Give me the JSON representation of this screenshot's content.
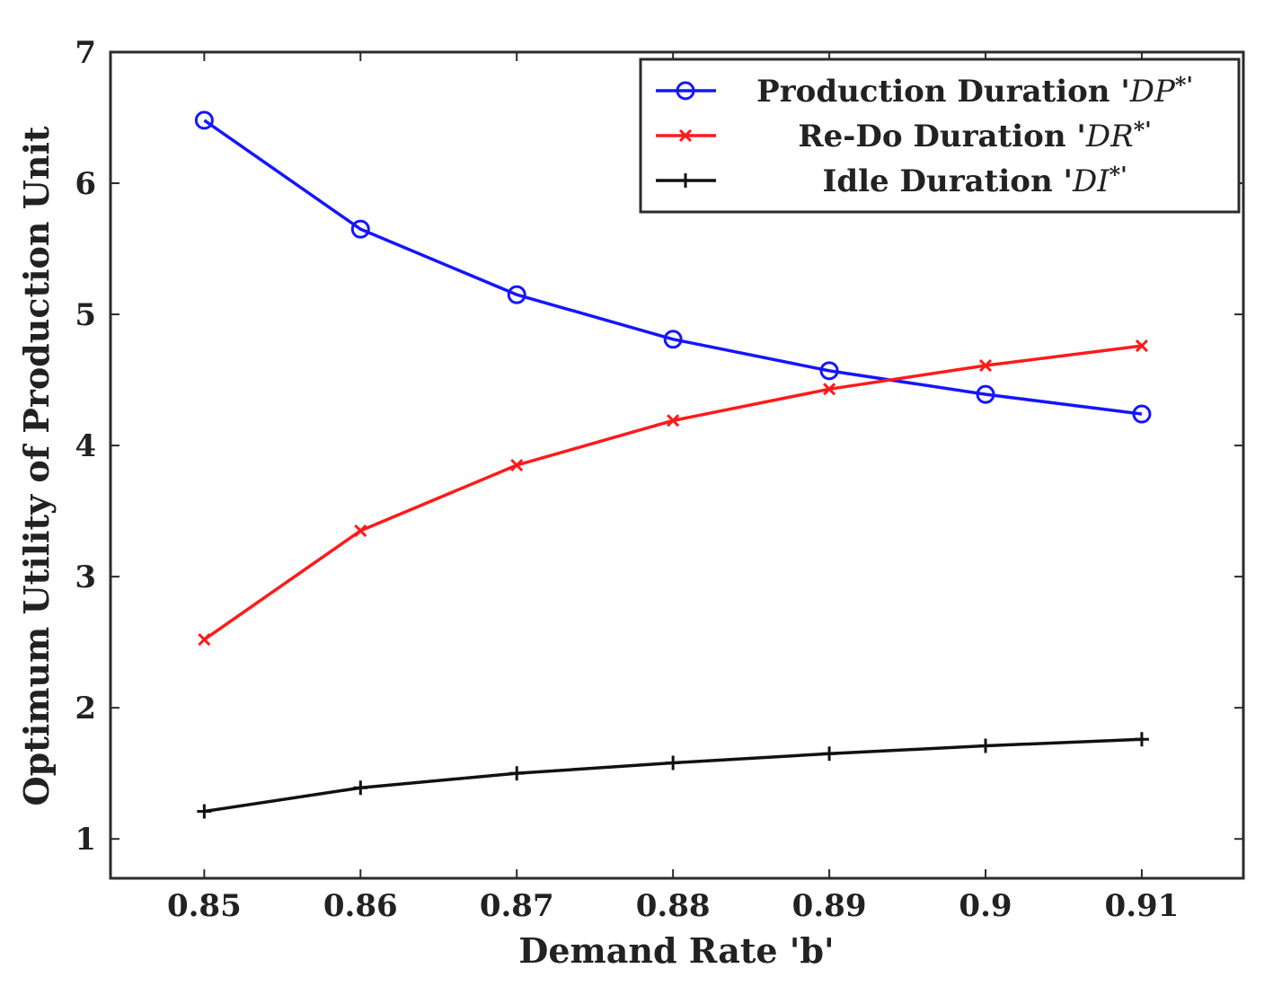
{
  "chart_data": {
    "type": "line",
    "title": "",
    "xlabel": "Demand Rate 'b'",
    "ylabel": "Optimum Utility of Production Unit",
    "x": [
      0.85,
      0.86,
      0.87,
      0.88,
      0.89,
      0.9,
      0.91
    ],
    "xticks": [
      "0.85",
      "0.86",
      "0.87",
      "0.88",
      "0.89",
      "0.9",
      "0.91"
    ],
    "yticks": [
      "1",
      "2",
      "3",
      "4",
      "5",
      "6",
      "7"
    ],
    "xlim": [
      0.844,
      0.9165
    ],
    "ylim": [
      0.7,
      7
    ],
    "grid": false,
    "legend_position": "top-right",
    "series": [
      {
        "name": "Production Duration 'DP*'",
        "legend_prefix": "Production Duration '",
        "legend_symbol": "DP",
        "legend_suffix": "*'",
        "color": "#1515ff",
        "marker": "circle",
        "values": [
          6.48,
          5.65,
          5.15,
          4.81,
          4.57,
          4.39,
          4.24
        ]
      },
      {
        "name": "Re-Do Duration 'DR*'",
        "legend_prefix": "Re-Do Duration '",
        "legend_symbol": "DR",
        "legend_suffix": "*'",
        "color": "#ff1a1a",
        "marker": "x",
        "values": [
          2.52,
          3.35,
          3.85,
          4.19,
          4.43,
          4.61,
          4.76
        ]
      },
      {
        "name": "Idle Duration 'DI*'",
        "legend_prefix": "Idle Duration '",
        "legend_symbol": "DI",
        "legend_suffix": "*'",
        "color": "#111111",
        "marker": "plus",
        "values": [
          1.21,
          1.39,
          1.5,
          1.58,
          1.65,
          1.71,
          1.76
        ]
      }
    ]
  }
}
